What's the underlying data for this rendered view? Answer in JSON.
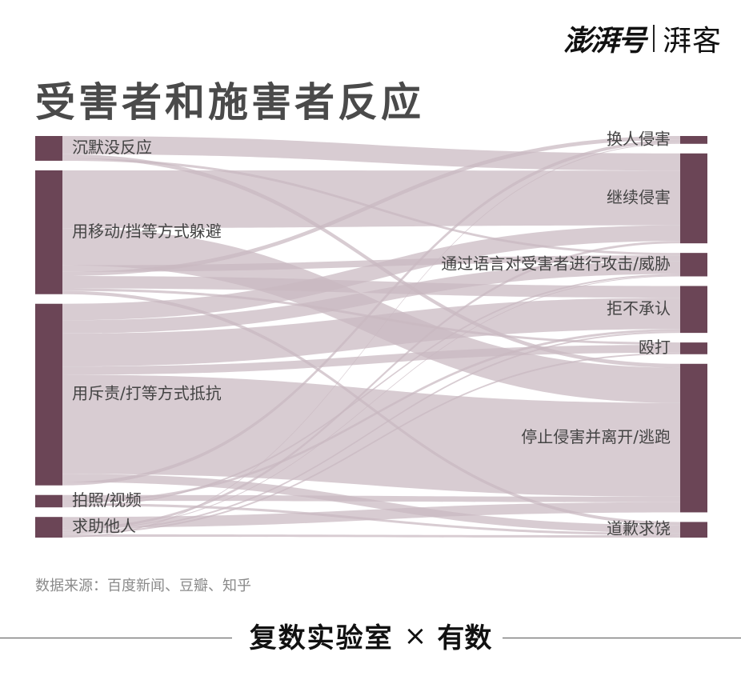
{
  "brand": {
    "left": "澎湃号",
    "right": "湃客"
  },
  "title": "受害者和施害者反应",
  "chart_data": {
    "type": "sankey",
    "sources": [
      {
        "name": "沉默没反应",
        "value": 3
      },
      {
        "name": "用移动/挡等方式躲避",
        "value": 15
      },
      {
        "name": "用斥责/打等方式抵抗",
        "value": 22
      },
      {
        "name": "拍照/视频",
        "value": 1.5
      },
      {
        "name": "求助他人",
        "value": 2.5
      }
    ],
    "targets": [
      {
        "name": "换人侵害",
        "value": 1
      },
      {
        "name": "继续侵害",
        "value": 11.5
      },
      {
        "name": "通过语言对受害者进行攻击/威胁",
        "value": 3
      },
      {
        "name": "拒不承认",
        "value": 6
      },
      {
        "name": "殴打",
        "value": 1.5
      },
      {
        "name": "停止侵害并离开/逃跑",
        "value": 19
      },
      {
        "name": "道歉求饶",
        "value": 2
      }
    ],
    "links": [
      {
        "source": "沉默没反应",
        "target": "继续侵害",
        "value": 2.2
      },
      {
        "source": "沉默没反应",
        "target": "停止侵害并离开/逃跑",
        "value": 0.5
      },
      {
        "source": "沉默没反应",
        "target": "通过语言对受害者进行攻击/威胁",
        "value": 0.3
      },
      {
        "source": "用移动/挡等方式躲避",
        "target": "继续侵害",
        "value": 7
      },
      {
        "source": "用移动/挡等方式躲避",
        "target": "停止侵害并离开/逃跑",
        "value": 4.5
      },
      {
        "source": "用移动/挡等方式躲避",
        "target": "通过语言对受害者进行攻击/威胁",
        "value": 0.8
      },
      {
        "source": "用移动/挡等方式躲避",
        "target": "换人侵害",
        "value": 0.5
      },
      {
        "source": "用移动/挡等方式躲避",
        "target": "拒不承认",
        "value": 1.5
      },
      {
        "source": "用移动/挡等方式躲避",
        "target": "殴打",
        "value": 0.3
      },
      {
        "source": "用移动/挡等方式躲避",
        "target": "道歉求饶",
        "value": 0.4
      },
      {
        "source": "用斥责/打等方式抵抗",
        "target": "继续侵害",
        "value": 2
      },
      {
        "source": "用斥责/打等方式抵抗",
        "target": "通过语言对受害者进行攻击/威胁",
        "value": 1.6
      },
      {
        "source": "用斥责/打等方式抵抗",
        "target": "拒不承认",
        "value": 4
      },
      {
        "source": "用斥责/打等方式抵抗",
        "target": "殴打",
        "value": 1
      },
      {
        "source": "用斥责/打等方式抵抗",
        "target": "停止侵害并离开/逃跑",
        "value": 12
      },
      {
        "source": "用斥责/打等方式抵抗",
        "target": "道歉求饶",
        "value": 1
      },
      {
        "source": "用斥责/打等方式抵抗",
        "target": "换人侵害",
        "value": 0.4
      },
      {
        "source": "拍照/视频",
        "target": "停止侵害并离开/逃跑",
        "value": 0.7
      },
      {
        "source": "拍照/视频",
        "target": "拒不承认",
        "value": 0.3
      },
      {
        "source": "拍照/视频",
        "target": "道歉求饶",
        "value": 0.3
      },
      {
        "source": "拍照/视频",
        "target": "通过语言对受害者进行攻击/威胁",
        "value": 0.2
      },
      {
        "source": "求助他人",
        "target": "停止侵害并离开/逃跑",
        "value": 1.3
      },
      {
        "source": "求助他人",
        "target": "继续侵害",
        "value": 0.3
      },
      {
        "source": "求助他人",
        "target": "通过语言对受害者进行攻击/威胁",
        "value": 0.1
      },
      {
        "source": "求助他人",
        "target": "拒不承认",
        "value": 0.2
      },
      {
        "source": "求助他人",
        "target": "殴打",
        "value": 0.2
      },
      {
        "source": "求助他人",
        "target": "道歉求饶",
        "value": 0.3
      },
      {
        "source": "求助他人",
        "target": "换人侵害",
        "value": 0.1
      }
    ],
    "colors": {
      "node": "#6b4556",
      "link": "#c9b8c0"
    }
  },
  "source_note": "数据来源：百度新闻、豆瓣、知乎",
  "footer": {
    "lab": "复数实验室",
    "x": "×",
    "shu": "有数"
  }
}
